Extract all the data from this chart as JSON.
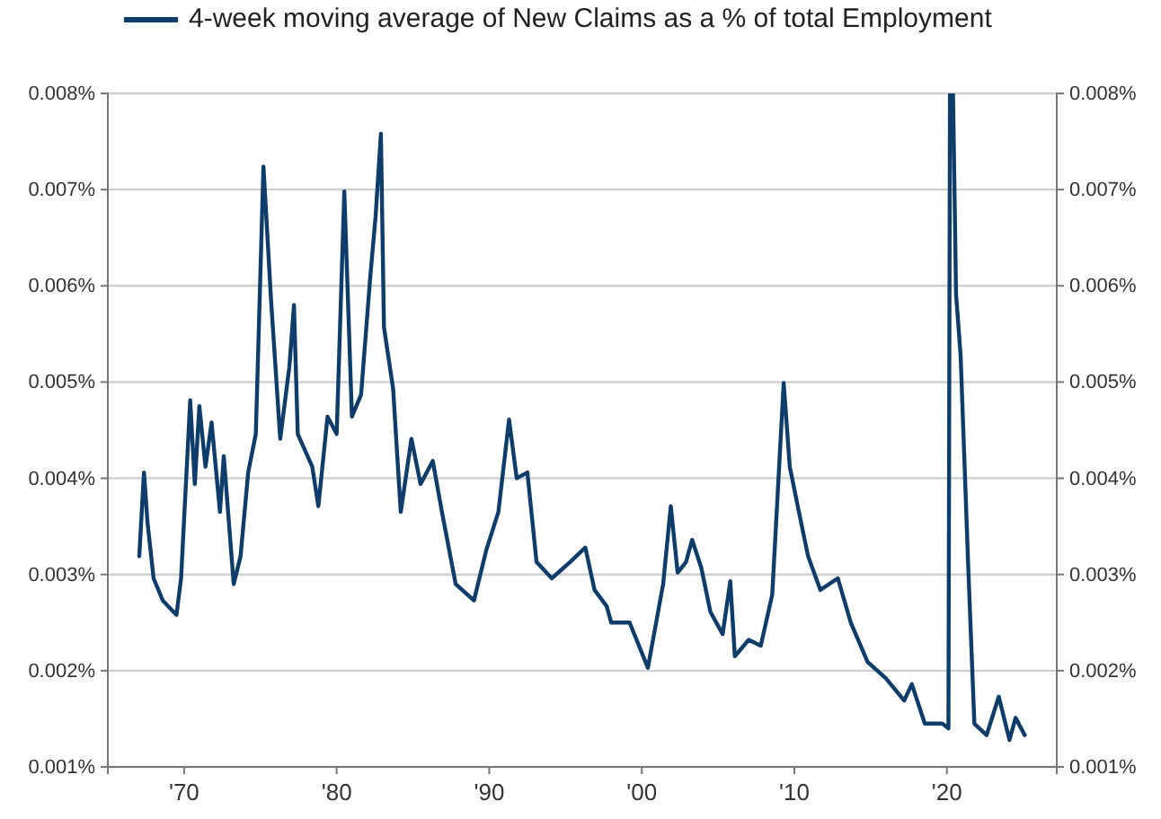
{
  "chart_data": {
    "type": "line",
    "x": [
      1967.06,
      1967.37,
      1967.6,
      1968.0,
      1968.6,
      1969.5,
      1969.8,
      1970.4,
      1970.7,
      1971.0,
      1971.4,
      1971.8,
      1972.35,
      1972.6,
      1973.25,
      1973.7,
      1974.2,
      1974.7,
      1975.2,
      1975.7,
      1976.3,
      1976.9,
      1977.2,
      1977.45,
      1978.4,
      1978.8,
      1979.4,
      1980.0,
      1980.5,
      1981.0,
      1981.6,
      1982.2,
      1982.55,
      1982.9,
      1983.1,
      1983.7,
      1984.2,
      1984.9,
      1985.5,
      1986.3,
      1986.9,
      1987.8,
      1989.0,
      1989.8,
      1990.6,
      1991.3,
      1991.8,
      1992.5,
      1993.1,
      1994.1,
      1995.3,
      1996.3,
      1996.9,
      1997.7,
      1998.0,
      1999.2,
      2000.4,
      2001.4,
      2001.9,
      2002.35,
      2002.9,
      2003.3,
      2003.9,
      2004.5,
      2005.3,
      2005.8,
      2006.1,
      2007.0,
      2007.8,
      2008.55,
      2009.3,
      2009.7,
      2010.3,
      2010.9,
      2011.7,
      2012.85,
      2013.7,
      2014.8,
      2016.0,
      2017.2,
      2017.7,
      2018.55,
      2019.7,
      2020.1,
      2020.2,
      2020.4,
      2020.6,
      2020.9,
      2021.4,
      2021.8,
      2022.6,
      2023.4,
      2024.1,
      2024.5,
      2025.1
    ],
    "series": [
      {
        "name": "4-week moving average of New Claims as a % of total Employment",
        "color": "#0f3d6b",
        "values": [
          0.00319,
          0.00406,
          0.00354,
          0.00296,
          0.00273,
          0.00258,
          0.00296,
          0.00481,
          0.00394,
          0.00475,
          0.00412,
          0.00458,
          0.00365,
          0.00423,
          0.0029,
          0.00319,
          0.00406,
          0.00446,
          0.00724,
          0.00585,
          0.00441,
          0.00516,
          0.0058,
          0.00446,
          0.00412,
          0.00371,
          0.00464,
          0.00446,
          0.00698,
          0.00464,
          0.00487,
          0.00609,
          0.00672,
          0.00758,
          0.00557,
          0.00493,
          0.00365,
          0.00441,
          0.00394,
          0.00418,
          0.00365,
          0.0029,
          0.00273,
          0.00325,
          0.00365,
          0.00461,
          0.004,
          0.00406,
          0.00313,
          0.00296,
          0.00313,
          0.00328,
          0.00284,
          0.00267,
          0.0025,
          0.0025,
          0.00203,
          0.0029,
          0.00371,
          0.00302,
          0.00313,
          0.00336,
          0.00307,
          0.00261,
          0.00238,
          0.00293,
          0.00215,
          0.00232,
          0.00226,
          0.00279,
          0.00499,
          0.00412,
          0.00365,
          0.00319,
          0.00284,
          0.00296,
          0.0025,
          0.00209,
          0.00192,
          0.00169,
          0.00186,
          0.00145,
          0.00145,
          0.0014,
          0.008,
          0.008,
          0.00591,
          0.00527,
          0.00307,
          0.00145,
          0.00133,
          0.00173,
          0.00128,
          0.00151,
          0.00133
        ]
      }
    ],
    "xlim": [
      1965,
      2027.2
    ],
    "xticks": [
      {
        "value": 1970,
        "label": "'70"
      },
      {
        "value": 1980,
        "label": "'80"
      },
      {
        "value": 1990,
        "label": "'90"
      },
      {
        "value": 2000,
        "label": "'00"
      },
      {
        "value": 2010,
        "label": "'10"
      },
      {
        "value": 2020,
        "label": "'20"
      }
    ],
    "ylim": [
      0.001,
      0.008
    ],
    "yticks": [
      {
        "value": 0.001,
        "label": "0.001%"
      },
      {
        "value": 0.002,
        "label": "0.002%"
      },
      {
        "value": 0.003,
        "label": "0.003%"
      },
      {
        "value": 0.004,
        "label": "0.004%"
      },
      {
        "value": 0.005,
        "label": "0.005%"
      },
      {
        "value": 0.006,
        "label": "0.006%"
      },
      {
        "value": 0.007,
        "label": "0.007%"
      },
      {
        "value": 0.008,
        "label": "0.008%"
      }
    ],
    "y2lim": [
      0.001,
      0.008
    ],
    "y2ticks": [
      {
        "value": 0.001,
        "label": "0.001%"
      },
      {
        "value": 0.002,
        "label": "0.002%"
      },
      {
        "value": 0.003,
        "label": "0.003%"
      },
      {
        "value": 0.004,
        "label": "0.004%"
      },
      {
        "value": 0.005,
        "label": "0.005%"
      },
      {
        "value": 0.006,
        "label": "0.006%"
      },
      {
        "value": 0.007,
        "label": "0.007%"
      },
      {
        "value": 0.008,
        "label": "0.008%"
      }
    ],
    "grid": "y",
    "legend": "top",
    "marker": "none",
    "line_style": "solid"
  }
}
